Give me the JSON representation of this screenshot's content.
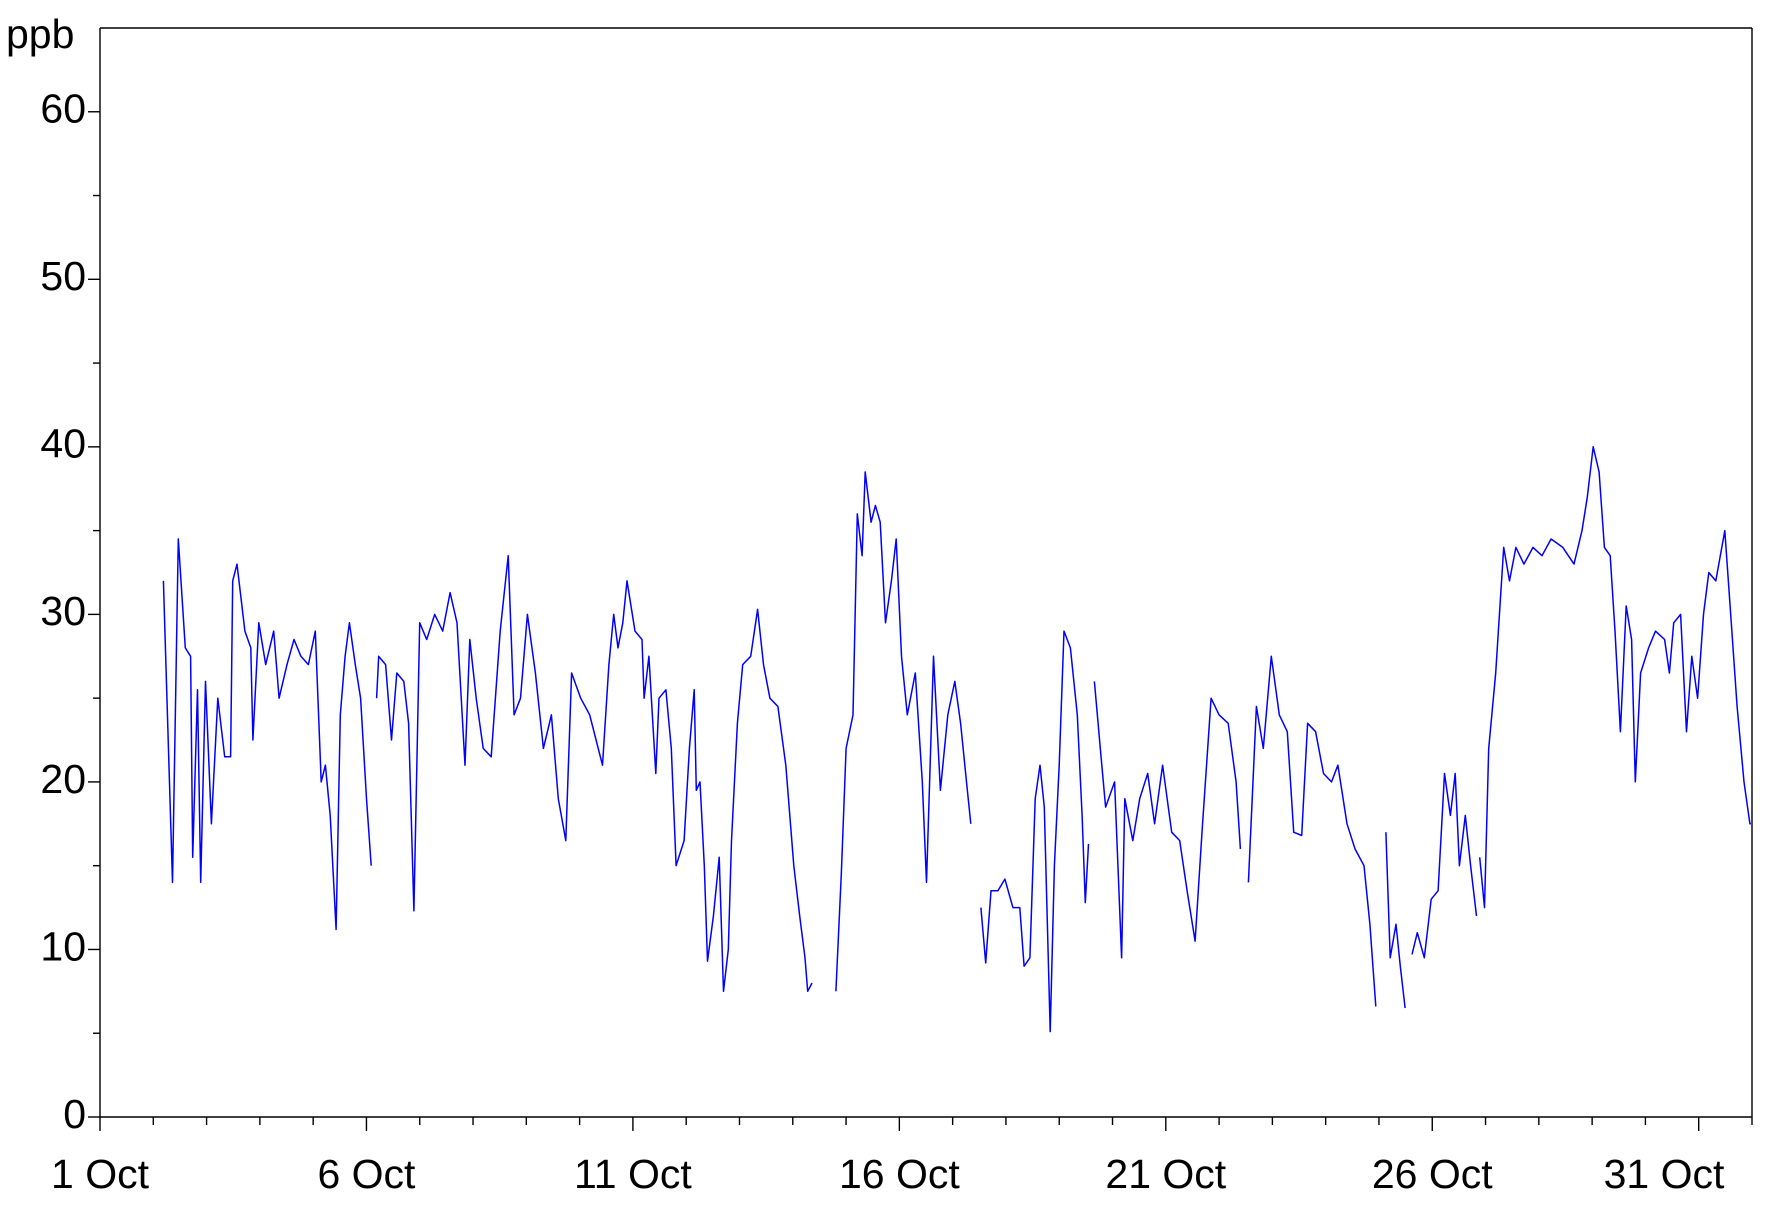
{
  "chart_data": {
    "type": "line",
    "ylabel": "ppb",
    "xlim": [
      1,
      32
    ],
    "xticks": [
      {
        "value": 1,
        "label": "1 Oct"
      },
      {
        "value": 6,
        "label": "6 Oct"
      },
      {
        "value": 11,
        "label": "11 Oct"
      },
      {
        "value": 16,
        "label": "16 Oct"
      },
      {
        "value": 21,
        "label": "21 Oct"
      },
      {
        "value": 26,
        "label": "26 Oct"
      },
      {
        "value": 31,
        "label": "31 Oct"
      }
    ],
    "xminorticks": [
      2,
      3,
      4,
      5,
      7,
      8,
      9,
      10,
      12,
      13,
      14,
      15,
      17,
      18,
      19,
      20,
      22,
      23,
      24,
      25,
      27,
      28,
      29,
      30,
      32
    ],
    "ylim": [
      0,
      65
    ],
    "yticks": [
      0,
      10,
      20,
      30,
      40,
      50,
      60
    ],
    "yminorticks": [
      5,
      15,
      25,
      35,
      45,
      55
    ],
    "series": [
      {
        "color": "#0000ff",
        "x": [
          2.19,
          2.36,
          2.47,
          2.6,
          2.7,
          2.74,
          2.83,
          2.89,
          2.98,
          3.09,
          3.21,
          3.34,
          3.45,
          3.49,
          3.57,
          3.72,
          3.83,
          3.87,
          3.98,
          4.11,
          4.26,
          4.36,
          4.51,
          4.64,
          4.77,
          4.91,
          5.04,
          5.15,
          5.23,
          5.32,
          5.43,
          5.51,
          5.6,
          5.68,
          5.79,
          5.89,
          6.0,
          6.09,
          null,
          6.19,
          6.23,
          6.36,
          6.47,
          6.57,
          6.7,
          6.79,
          6.89,
          7.0,
          7.13,
          7.28,
          7.43,
          7.57,
          7.7,
          7.85,
          7.94,
          8.06,
          8.19,
          8.34,
          8.51,
          8.66,
          8.77,
          8.89,
          9.02,
          9.17,
          9.32,
          9.47,
          9.6,
          9.74,
          9.85,
          10.02,
          10.19,
          10.43,
          10.55,
          10.64,
          10.72,
          10.81,
          10.89,
          11.04,
          11.17,
          11.21,
          11.3,
          11.43,
          11.49,
          11.62,
          11.72,
          11.81,
          11.96,
          12.06,
          12.15,
          12.19,
          12.26,
          12.34,
          12.4,
          12.51,
          12.62,
          12.7,
          12.79,
          12.85,
          12.96,
          13.06,
          13.21,
          13.34,
          13.45,
          13.57,
          13.72,
          13.87,
          14.02,
          14.13,
          14.23,
          14.28,
          14.36,
          null,
          14.81,
          14.91,
          15.0,
          15.13,
          15.21,
          15.3,
          15.36,
          15.47,
          15.55,
          15.64,
          15.74,
          15.85,
          15.94,
          16.04,
          16.15,
          16.3,
          16.43,
          16.51,
          16.64,
          16.77,
          16.91,
          17.04,
          17.15,
          17.26,
          17.34,
          null,
          17.53,
          17.62,
          17.72,
          17.85,
          17.98,
          18.13,
          18.26,
          18.34,
          18.45,
          18.55,
          18.64,
          18.72,
          18.83,
          18.91,
          19.0,
          19.09,
          19.21,
          19.34,
          19.43,
          19.49,
          19.55,
          null,
          19.66,
          19.77,
          19.87,
          20.04,
          20.17,
          20.23,
          20.38,
          20.51,
          20.66,
          20.79,
          20.94,
          21.11,
          21.26,
          21.4,
          21.55,
          21.68,
          21.85,
          22.0,
          22.17,
          22.32,
          22.4,
          null,
          22.55,
          22.7,
          22.83,
          22.98,
          23.13,
          23.28,
          23.4,
          23.55,
          23.66,
          23.81,
          23.96,
          24.11,
          24.23,
          24.4,
          24.55,
          24.72,
          24.83,
          24.94,
          null,
          25.13,
          25.21,
          25.32,
          25.4,
          25.49,
          null,
          25.62,
          25.72,
          25.85,
          25.98,
          26.11,
          26.23,
          26.34,
          26.43,
          26.51,
          26.62,
          26.72,
          26.83,
          null,
          26.89,
          26.98,
          27.06,
          27.19,
          27.34,
          27.45,
          27.57,
          27.72,
          27.89,
          28.06,
          28.23,
          28.45,
          28.66,
          28.81,
          28.91,
          29.02,
          29.13,
          29.23,
          29.34,
          29.43,
          29.53,
          29.64,
          29.74,
          29.81,
          29.91,
          30.06,
          30.19,
          30.36,
          30.45,
          30.53,
          30.66,
          30.77,
          30.87,
          30.98,
          31.09,
          31.19,
          31.32,
          31.49,
          31.6,
          31.72,
          31.85,
          31.96,
          31.98
        ],
        "values": [
          32,
          14,
          34.5,
          28,
          27.5,
          15.5,
          25.5,
          14,
          26,
          17.5,
          25,
          21.5,
          21.5,
          32,
          33,
          29,
          28,
          22.5,
          29.5,
          27,
          29,
          25,
          27,
          28.5,
          27.5,
          27,
          29,
          20,
          21,
          18,
          11.2,
          24,
          27.5,
          29.5,
          27,
          25,
          19,
          15,
          null,
          25,
          27.5,
          27,
          22.5,
          26.5,
          26,
          23.5,
          12.3,
          29.5,
          28.5,
          30,
          29,
          31.3,
          29.5,
          21,
          28.5,
          25,
          22,
          21.5,
          29,
          33.5,
          24,
          25,
          30,
          26.5,
          22,
          24,
          19,
          16.5,
          26.5,
          25,
          24,
          21,
          27,
          30,
          28,
          29.5,
          32,
          29,
          28.5,
          25,
          27.5,
          20.5,
          25,
          25.5,
          22,
          15,
          16.5,
          22,
          25.5,
          19.5,
          20,
          15,
          9.3,
          12,
          15.5,
          7.5,
          10,
          16.5,
          23.5,
          27,
          27.5,
          30.3,
          27,
          25,
          24.5,
          21,
          15,
          12,
          9.5,
          7.5,
          8,
          null,
          7.5,
          14.5,
          22,
          24,
          36,
          33.5,
          38.5,
          35.5,
          36.5,
          35.5,
          29.5,
          32,
          34.5,
          27.5,
          24,
          26.5,
          20,
          14,
          27.5,
          19.5,
          24,
          26,
          23.5,
          20,
          17.5,
          null,
          12.5,
          9.2,
          13.5,
          13.5,
          14.2,
          12.5,
          12.5,
          9,
          9.5,
          19,
          21,
          18.5,
          5.1,
          15,
          21,
          29,
          28,
          24,
          18,
          12.8,
          16.3,
          null,
          26,
          22,
          18.5,
          20,
          9.5,
          19,
          16.5,
          19,
          20.5,
          17.5,
          21,
          17,
          16.5,
          13.5,
          10.5,
          17,
          25,
          24,
          23.5,
          20,
          16,
          null,
          14,
          24.5,
          22,
          27.5,
          24,
          23,
          17,
          16.8,
          23.5,
          23,
          20.5,
          20,
          21,
          17.5,
          16,
          15,
          11.5,
          6.6,
          null,
          17,
          9.5,
          11.5,
          9,
          6.5,
          null,
          9.7,
          11,
          9.5,
          13,
          13.5,
          20.5,
          18,
          20.5,
          15,
          18,
          15,
          12,
          null,
          15.5,
          12.5,
          22,
          26.5,
          34,
          32,
          34,
          33,
          34,
          33.5,
          34.5,
          34,
          33,
          35,
          37,
          40,
          38.5,
          34,
          33.5,
          29,
          23,
          30.5,
          28.5,
          20,
          26.5,
          28,
          29,
          28.5,
          26.5,
          29.5,
          30,
          23,
          27.5,
          25,
          30,
          32.5,
          32,
          35,
          30,
          24.5,
          20,
          17.5,
          17.5
        ]
      }
    ]
  }
}
